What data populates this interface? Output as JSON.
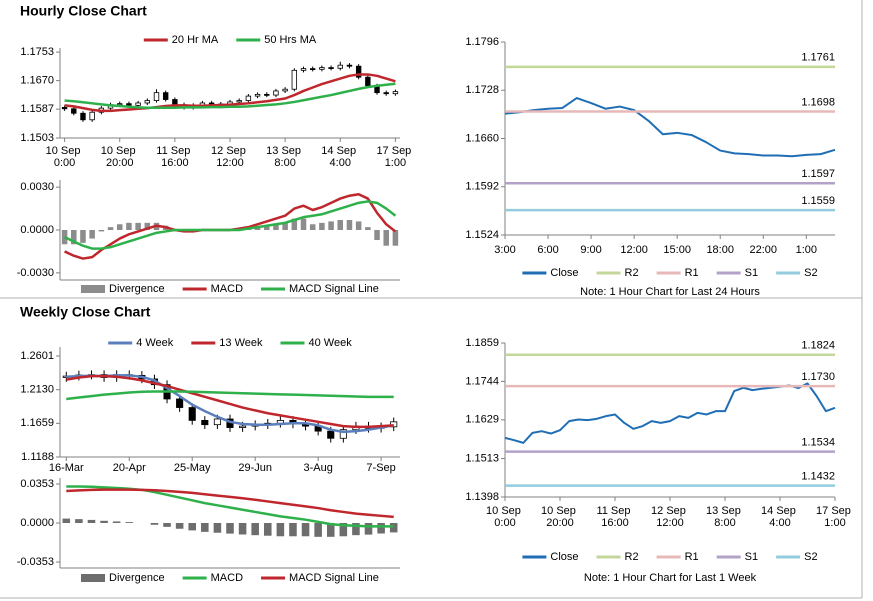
{
  "chart_data": [
    {
      "type": "candlestick",
      "title": "Hourly Close Chart",
      "legend": "top",
      "categories": [
        "10 Sep 0:00",
        null,
        null,
        null,
        null,
        null,
        "10 Sep 20:00",
        null,
        null,
        null,
        null,
        null,
        "11 Sep 16:00",
        null,
        null,
        null,
        null,
        null,
        "12 Sep 12:00",
        null,
        null,
        null,
        null,
        null,
        "13 Sep 8:00",
        null,
        null,
        null,
        null,
        null,
        "14 Sep 4:00",
        null,
        null,
        null,
        null,
        null,
        "17 Sep 1:00"
      ],
      "open": [
        1.1592,
        1.1588,
        1.1575,
        1.1556,
        1.1578,
        1.159,
        1.16,
        1.1603,
        1.1598,
        1.1605,
        1.1612,
        1.1635,
        1.1615,
        1.16,
        1.1592,
        1.1598,
        1.1605,
        1.1602,
        1.1598,
        1.1608,
        1.1612,
        1.1625,
        1.163,
        1.1628,
        1.164,
        1.1645,
        1.17,
        1.1705,
        1.1703,
        1.1708,
        1.1706,
        1.1715,
        1.1712,
        1.168,
        1.1655,
        1.1635,
        1.1632
      ],
      "high": [
        1.1598,
        1.1594,
        1.1581,
        1.1584,
        1.1596,
        1.1606,
        1.1609,
        1.1609,
        1.1611,
        1.1618,
        1.1645,
        1.1641,
        1.1621,
        1.1606,
        1.1604,
        1.1611,
        1.1611,
        1.1608,
        1.1614,
        1.1618,
        1.1631,
        1.1636,
        1.1636,
        1.1646,
        1.1651,
        1.1706,
        1.1711,
        1.1711,
        1.1714,
        1.1714,
        1.1725,
        1.1721,
        1.1718,
        1.1686,
        1.1661,
        1.1641,
        1.1644
      ],
      "low": [
        1.1582,
        1.1569,
        1.155,
        1.155,
        1.1572,
        1.1584,
        1.1594,
        1.1592,
        1.1592,
        1.1599,
        1.1606,
        1.1609,
        1.1594,
        1.1586,
        1.1586,
        1.1592,
        1.1596,
        1.159,
        1.1592,
        1.1602,
        1.1606,
        1.1619,
        1.1622,
        1.1622,
        1.1634,
        1.1639,
        1.1694,
        1.1697,
        1.1697,
        1.17,
        1.17,
        1.1706,
        1.1674,
        1.1649,
        1.1629,
        1.1626,
        1.1626
      ],
      "close": [
        1.1588,
        1.1575,
        1.1556,
        1.1578,
        1.159,
        1.16,
        1.1603,
        1.1598,
        1.1605,
        1.1612,
        1.1635,
        1.1615,
        1.16,
        1.1592,
        1.1598,
        1.1605,
        1.1602,
        1.1598,
        1.1608,
        1.1612,
        1.1625,
        1.163,
        1.1628,
        1.164,
        1.1645,
        1.17,
        1.1705,
        1.1703,
        1.1708,
        1.1706,
        1.1715,
        1.1712,
        1.168,
        1.1655,
        1.1635,
        1.1632,
        1.1638
      ],
      "series": [
        {
          "name": "20 Hr MA",
          "color": "#c0272d",
          "values": [
            1.1598,
            1.1595,
            1.159,
            1.1585,
            1.1582,
            1.1582,
            1.1584,
            1.1586,
            1.1588,
            1.159,
            1.1593,
            1.1596,
            1.1598,
            1.1598,
            1.1597,
            1.1597,
            1.1598,
            1.1599,
            1.16,
            1.1602,
            1.1604,
            1.1607,
            1.161,
            1.1614,
            1.1618,
            1.1628,
            1.164,
            1.165,
            1.166,
            1.1668,
            1.1676,
            1.1684,
            1.1688,
            1.1688,
            1.1684,
            1.1676,
            1.1668
          ]
        },
        {
          "name": "50 Hrs MA",
          "color": "#2eb04b",
          "values": [
            1.1612,
            1.161,
            1.1607,
            1.1604,
            1.1601,
            1.1598,
            1.1596,
            1.1594,
            1.1592,
            1.1591,
            1.1591,
            1.1591,
            1.1591,
            1.1592,
            1.1592,
            1.1592,
            1.1593,
            1.1593,
            1.1594,
            1.1594,
            1.1595,
            1.1597,
            1.1599,
            1.1601,
            1.1604,
            1.1608,
            1.1613,
            1.1618,
            1.1623,
            1.1628,
            1.1634,
            1.164,
            1.1646,
            1.1651,
            1.1655,
            1.1658,
            1.1661
          ]
        }
      ],
      "ylim": [
        1.1503,
        1.1765
      ],
      "yticks": [
        1.1503,
        1.1587,
        {
          "value": 1.167,
          "label": "1.1670"
        },
        1.1753
      ]
    },
    {
      "type": "combo",
      "legend": "bottom",
      "series": [
        {
          "name": "Divergence",
          "kind": "bar",
          "color": "#8c8c8c",
          "values": [
            -0.001,
            -0.001,
            -0.0009,
            -0.0006,
            -0.0001,
            0.0002,
            0.0004,
            0.0005,
            0.0005,
            0.0005,
            0.0005,
            0.0003,
            0,
            -0.0001,
            -0.0001,
            0,
            0,
            0,
            0,
            0.0001,
            0.0001,
            0.0002,
            0.0003,
            0.0004,
            0.0005,
            0.0008,
            0.0008,
            0.0004,
            0.0005,
            0.0006,
            0.0007,
            0.0007,
            0.0006,
            0.0002,
            -0.0007,
            -0.0011,
            -0.0011
          ]
        },
        {
          "name": "MACD",
          "kind": "line",
          "color": "#c0272d",
          "values": [
            -0.0015,
            -0.0018,
            -0.002,
            -0.0019,
            -0.0014,
            -0.001,
            -0.0006,
            -0.0003,
            -0.0001,
            0.0001,
            0.0003,
            0.0002,
            0,
            -0.0001,
            -0.0001,
            0,
            0,
            0,
            0,
            0.0001,
            0.0002,
            0.0004,
            0.0006,
            0.0008,
            0.001,
            0.0015,
            0.0017,
            0.0014,
            0.0016,
            0.0019,
            0.0022,
            0.0024,
            0.0025,
            0.0022,
            0.0012,
            0.0004,
            -0.0001
          ]
        },
        {
          "name": "MACD Signal Line",
          "kind": "line",
          "color": "#2eb04b",
          "values": [
            -0.0005,
            -0.0008,
            -0.0011,
            -0.0013,
            -0.0013,
            -0.0012,
            -0.001,
            -0.0008,
            -0.0006,
            -0.0004,
            -0.0002,
            -0.0001,
            0,
            0,
            0,
            0,
            0,
            0,
            0,
            0,
            0.0001,
            0.0002,
            0.0003,
            0.0004,
            0.0005,
            0.0007,
            0.0009,
            0.001,
            0.0011,
            0.0013,
            0.0015,
            0.0017,
            0.0019,
            0.002,
            0.0019,
            0.0015,
            0.001
          ]
        }
      ],
      "ylim": [
        -0.0035,
        0.0035
      ],
      "yticks": [
        {
          "value": 0.003,
          "label": "0.0030"
        },
        {
          "value": 0,
          "label": "0.0000"
        },
        {
          "value": -0.003,
          "label": "-0.0030"
        }
      ]
    },
    {
      "type": "line",
      "legend": "bottom",
      "note": "Note: 1 Hour Chart for Last 24 Hours",
      "categories": [
        "3:00",
        null,
        null,
        "6:00",
        null,
        null,
        "9:00",
        null,
        null,
        "12:00",
        null,
        null,
        "15:00",
        null,
        null,
        "18:00",
        null,
        null,
        "22:00",
        null,
        null,
        "1:00",
        null,
        null
      ],
      "series": [
        {
          "name": "Close",
          "color": "#1f6eb5",
          "values": [
            1.1695,
            1.1697,
            1.17,
            1.1702,
            1.1703,
            1.1717,
            1.171,
            1.1702,
            1.1705,
            1.17,
            1.1685,
            1.1666,
            1.1668,
            1.1665,
            1.1655,
            1.1643,
            1.1639,
            1.1638,
            1.1636,
            1.1636,
            1.1635,
            1.1637,
            1.1638,
            1.1644
          ]
        },
        {
          "name": "R2",
          "color": "#c4d79b",
          "value": 1.1761
        },
        {
          "name": "R1",
          "color": "#e6b9b8",
          "value": 1.1698
        },
        {
          "name": "S1",
          "color": "#b3a2c7",
          "value": 1.1597
        },
        {
          "name": "S2",
          "color": "#93cddd",
          "value": 1.1559
        }
      ],
      "ylim": [
        1.1524,
        1.1796
      ],
      "yticks": [
        1.1524,
        1.1592,
        {
          "value": 1.166,
          "label": "1.1660"
        },
        1.1728,
        1.1796
      ]
    },
    {
      "type": "candlestick",
      "title": "Weekly Close Chart",
      "legend": "top",
      "categories": [
        "16-Mar",
        null,
        null,
        null,
        null,
        "20-Apr",
        null,
        null,
        null,
        null,
        "25-May",
        null,
        null,
        null,
        null,
        "29-Jun",
        null,
        null,
        null,
        null,
        "3-Aug",
        null,
        null,
        null,
        null,
        "7-Sep",
        null
      ],
      "open": [
        1.23,
        1.232,
        1.2335,
        1.234,
        1.23,
        1.234,
        1.233,
        1.228,
        1.22,
        1.2,
        1.188,
        1.17,
        1.164,
        1.172,
        1.16,
        1.162,
        1.164,
        1.166,
        1.17,
        1.165,
        1.162,
        1.155,
        1.145,
        1.157,
        1.162,
        1.159,
        1.161
      ],
      "high": [
        1.238,
        1.2395,
        1.24,
        1.24,
        1.24,
        1.24,
        1.239,
        1.234,
        1.226,
        1.206,
        1.194,
        1.176,
        1.178,
        1.178,
        1.168,
        1.17,
        1.172,
        1.176,
        1.176,
        1.171,
        1.168,
        1.161,
        1.163,
        1.168,
        1.168,
        1.167,
        1.174
      ],
      "low": [
        1.224,
        1.226,
        1.2275,
        1.224,
        1.224,
        1.227,
        1.222,
        1.214,
        1.194,
        1.182,
        1.164,
        1.158,
        1.158,
        1.154,
        1.154,
        1.156,
        1.158,
        1.16,
        1.159,
        1.156,
        1.149,
        1.139,
        1.139,
        1.151,
        1.153,
        1.153,
        1.155
      ],
      "close": [
        1.232,
        1.2335,
        1.234,
        1.23,
        1.234,
        1.233,
        1.228,
        1.22,
        1.2,
        1.188,
        1.17,
        1.164,
        1.172,
        1.16,
        1.162,
        1.164,
        1.166,
        1.17,
        1.165,
        1.162,
        1.155,
        1.145,
        1.157,
        1.162,
        1.159,
        1.161,
        1.168
      ],
      "series": [
        {
          "name": "4 Week",
          "color": "#5b7fbd",
          "values": [
            1.231,
            1.232,
            1.2325,
            1.232,
            1.233,
            1.233,
            1.231,
            1.226,
            1.215,
            1.204,
            1.192,
            1.183,
            1.175,
            1.168,
            1.165,
            1.164,
            1.164,
            1.165,
            1.166,
            1.166,
            1.163,
            1.157,
            1.154,
            1.155,
            1.157,
            1.16,
            1.163
          ]
        },
        {
          "name": "13 Week",
          "color": "#c0272d",
          "values": [
            1.227,
            1.23,
            1.232,
            1.232,
            1.231,
            1.229,
            1.226,
            1.222,
            1.218,
            1.213,
            1.208,
            1.203,
            1.198,
            1.193,
            1.188,
            1.184,
            1.18,
            1.177,
            1.174,
            1.171,
            1.168,
            1.165,
            1.162,
            1.161,
            1.161,
            1.162,
            1.163
          ]
        },
        {
          "name": "40 Week",
          "color": "#2eb04b",
          "values": [
            1.2,
            1.202,
            1.204,
            1.206,
            1.2075,
            1.209,
            1.21,
            1.2105,
            1.2105,
            1.2105,
            1.21,
            1.2095,
            1.209,
            1.2085,
            1.208,
            1.2075,
            1.207,
            1.2065,
            1.206,
            1.2055,
            1.205,
            1.2045,
            1.204,
            1.2035,
            1.203,
            1.203,
            1.203
          ]
        }
      ],
      "ylim": [
        1.1188,
        1.2727
      ],
      "yticks": [
        1.1188,
        1.1659,
        {
          "value": 1.213,
          "label": "1.2130"
        },
        1.2601
      ]
    },
    {
      "type": "combo",
      "legend": "bottom",
      "series": [
        {
          "name": "Divergence",
          "kind": "bar",
          "color": "#6d6d6d",
          "values": [
            0.004,
            0.0035,
            0.0028,
            0.002,
            0.0014,
            0.0008,
            0,
            -0.0016,
            -0.0035,
            -0.0052,
            -0.0067,
            -0.008,
            -0.0088,
            -0.0096,
            -0.0104,
            -0.011,
            -0.0115,
            -0.012,
            -0.012,
            -0.012,
            -0.0125,
            -0.0125,
            -0.012,
            -0.011,
            -0.0105,
            -0.0095,
            -0.0085
          ]
        },
        {
          "name": "MACD",
          "kind": "line",
          "color": "#2eb04b",
          "values": [
            0.033,
            0.033,
            0.0328,
            0.0322,
            0.0316,
            0.031,
            0.03,
            0.028,
            0.0255,
            0.023,
            0.0205,
            0.018,
            0.016,
            0.014,
            0.012,
            0.01,
            0.008,
            0.006,
            0.0045,
            0.003,
            0.001,
            -0.001,
            -0.002,
            -0.0025,
            -0.003,
            -0.003,
            -0.003
          ]
        },
        {
          "name": "MACD Signal Line",
          "kind": "line",
          "color": "#c0272d",
          "values": [
            0.029,
            0.0295,
            0.03,
            0.0302,
            0.0302,
            0.0302,
            0.03,
            0.0296,
            0.029,
            0.0282,
            0.0272,
            0.026,
            0.0248,
            0.0236,
            0.0224,
            0.021,
            0.0195,
            0.018,
            0.0165,
            0.015,
            0.0135,
            0.0115,
            0.01,
            0.0085,
            0.0075,
            0.0065,
            0.0055
          ]
        }
      ],
      "ylim": [
        -0.0407,
        0.0407
      ],
      "yticks": [
        0.0353,
        {
          "value": 0,
          "label": "0.0000"
        },
        -0.0353
      ]
    },
    {
      "type": "line",
      "legend": "bottom",
      "note": "Note: 1 Hour Chart for Last 1 Week",
      "categories": [
        "10 Sep 0:00",
        null,
        null,
        null,
        null,
        null,
        "10 Sep 20:00",
        null,
        null,
        null,
        null,
        null,
        "11 Sep 16:00",
        null,
        null,
        null,
        null,
        null,
        "12 Sep 12:00",
        null,
        null,
        null,
        null,
        null,
        "13 Sep 8:00",
        null,
        null,
        null,
        null,
        null,
        "14 Sep 4:00",
        null,
        null,
        null,
        null,
        null,
        "17 Sep 1:00"
      ],
      "series": [
        {
          "name": "Close",
          "color": "#1f6eb5",
          "values": [
            1.1575,
            1.1568,
            1.156,
            1.159,
            1.1595,
            1.1588,
            1.1598,
            1.1625,
            1.163,
            1.1628,
            1.1632,
            1.164,
            1.1645,
            1.162,
            1.1602,
            1.161,
            1.1625,
            1.162,
            1.1625,
            1.164,
            1.1635,
            1.165,
            1.1645,
            1.1655,
            1.1655,
            1.1715,
            1.1725,
            1.1718,
            1.1722,
            1.1725,
            1.1728,
            1.1732,
            1.1724,
            1.1738,
            1.17,
            1.1655,
            1.1665
          ]
        },
        {
          "name": "R2",
          "color": "#c4d79b",
          "value": 1.1824
        },
        {
          "name": "R1",
          "color": "#e6b9b8",
          "value": 1.173,
          "value_label": "1.1730"
        },
        {
          "name": "S1",
          "color": "#b3a2c7",
          "value": 1.1534
        },
        {
          "name": "S2",
          "color": "#93cddd",
          "value": 1.1432
        }
      ],
      "ylim": [
        1.1398,
        1.1859
      ],
      "yticks": [
        1.1398,
        1.1513,
        1.1629,
        1.1744,
        1.1859
      ]
    }
  ]
}
